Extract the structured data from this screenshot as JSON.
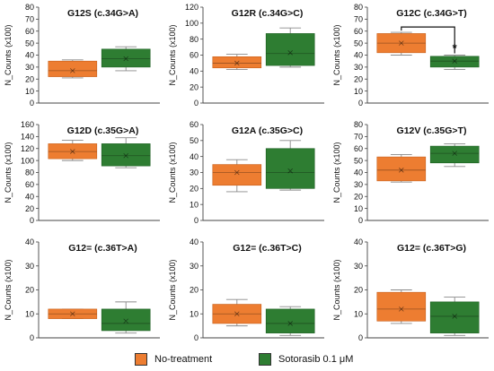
{
  "colors": {
    "orange": "#ED7D31",
    "green": "#2E7D32",
    "whisker": "#8a8a8a"
  },
  "legend": [
    {
      "label": "No-treatment",
      "color": "#ED7D31"
    },
    {
      "label": "Sotorasib 0.1 μM",
      "color": "#2E7D32"
    }
  ],
  "chart_data": [
    {
      "type": "box",
      "title": "G12S (c.34G>A)",
      "ylabel": "N_Counts (x100)",
      "ylim": [
        0,
        80
      ],
      "yticks": [
        0,
        10,
        20,
        30,
        40,
        50,
        60,
        70,
        80
      ],
      "series": [
        {
          "name": "No-treatment",
          "min": 21,
          "q1": 22,
          "median": 27,
          "mean": 27,
          "q3": 35,
          "max": 36
        },
        {
          "name": "Sotorasib 0.1 μM",
          "min": 27,
          "q1": 30,
          "median": 37,
          "mean": 37,
          "q3": 45,
          "max": 47
        }
      ]
    },
    {
      "type": "box",
      "title": "G12R (c.34G>C)",
      "ylabel": "N_Counts (x100)",
      "ylim": [
        0,
        120
      ],
      "yticks": [
        0,
        20,
        40,
        60,
        80,
        100,
        120
      ],
      "series": [
        {
          "name": "No-treatment",
          "min": 42,
          "q1": 44,
          "median": 50,
          "mean": 50,
          "q3": 58,
          "max": 61
        },
        {
          "name": "Sotorasib 0.1 μM",
          "min": 45,
          "q1": 47,
          "median": 62,
          "mean": 63,
          "q3": 87,
          "max": 94
        }
      ]
    },
    {
      "type": "box",
      "title": "G12C (c.34G>T)",
      "ylabel": "N_Counts (x100)",
      "ylim": [
        0,
        80
      ],
      "yticks": [
        0,
        10,
        20,
        30,
        40,
        50,
        60,
        70,
        80
      ],
      "significance": "*",
      "series": [
        {
          "name": "No-treatment",
          "min": 40,
          "q1": 42,
          "median": 50,
          "mean": 50,
          "q3": 58,
          "max": 59
        },
        {
          "name": "Sotorasib 0.1 μM",
          "min": 28,
          "q1": 30,
          "median": 35,
          "mean": 35,
          "q3": 39,
          "max": 40
        }
      ]
    },
    {
      "type": "box",
      "title": "G12D (c.35G>A)",
      "ylabel": "N_Counts (x100)",
      "ylim": [
        0,
        160
      ],
      "yticks": [
        0,
        20,
        40,
        60,
        80,
        100,
        120,
        140,
        160
      ],
      "series": [
        {
          "name": "No-treatment",
          "min": 100,
          "q1": 103,
          "median": 115,
          "mean": 115,
          "q3": 128,
          "max": 134
        },
        {
          "name": "Sotorasib 0.1 μM",
          "min": 88,
          "q1": 91,
          "median": 108,
          "mean": 108,
          "q3": 128,
          "max": 138
        }
      ]
    },
    {
      "type": "box",
      "title": "G12A (c.35G>C)",
      "ylabel": "N_Counts (x100)",
      "ylim": [
        0,
        60
      ],
      "yticks": [
        0,
        10,
        20,
        30,
        40,
        50,
        60
      ],
      "series": [
        {
          "name": "No-treatment",
          "min": 18,
          "q1": 22,
          "median": 30,
          "mean": 30,
          "q3": 35,
          "max": 38
        },
        {
          "name": "Sotorasib 0.1 μM",
          "min": 19,
          "q1": 20,
          "median": 30,
          "mean": 31,
          "q3": 45,
          "max": 50
        }
      ]
    },
    {
      "type": "box",
      "title": "G12V (c.35G>T)",
      "ylabel": "N_Counts (x100)",
      "ylim": [
        0,
        80
      ],
      "yticks": [
        0,
        10,
        20,
        30,
        40,
        50,
        60,
        70,
        80
      ],
      "series": [
        {
          "name": "No-treatment",
          "min": 32,
          "q1": 33,
          "median": 42,
          "mean": 42,
          "q3": 53,
          "max": 55
        },
        {
          "name": "Sotorasib 0.1 μM",
          "min": 45,
          "q1": 48,
          "median": 56,
          "mean": 56,
          "q3": 62,
          "max": 64
        }
      ]
    },
    {
      "type": "box",
      "title": "G12= (c.36T>A)",
      "ylabel": "N_Counts (x100)",
      "ylim": [
        0,
        40
      ],
      "yticks": [
        0,
        10,
        20,
        30,
        40
      ],
      "series": [
        {
          "name": "No-treatment",
          "min": 8,
          "q1": 8,
          "median": 10,
          "mean": 10,
          "q3": 12,
          "max": 12
        },
        {
          "name": "Sotorasib 0.1 μM",
          "min": 2,
          "q1": 3,
          "median": 6,
          "mean": 7,
          "q3": 12,
          "max": 15
        }
      ]
    },
    {
      "type": "box",
      "title": "G12= (c.36T>C)",
      "ylabel": "N_Counts (x100)",
      "ylim": [
        0,
        40
      ],
      "yticks": [
        0,
        10,
        20,
        30,
        40
      ],
      "series": [
        {
          "name": "No-treatment",
          "min": 5,
          "q1": 6,
          "median": 10,
          "mean": 10,
          "q3": 14,
          "max": 16
        },
        {
          "name": "Sotorasib 0.1 μM",
          "min": 1,
          "q1": 2,
          "median": 6,
          "mean": 6,
          "q3": 12,
          "max": 13
        }
      ]
    },
    {
      "type": "box",
      "title": "G12= (c.36T>G)",
      "ylabel": "N_Counts (x100)",
      "ylim": [
        0,
        40
      ],
      "yticks": [
        0,
        10,
        20,
        30,
        40
      ],
      "series": [
        {
          "name": "No-treatment",
          "min": 6,
          "q1": 7,
          "median": 12,
          "mean": 12,
          "q3": 19,
          "max": 20
        },
        {
          "name": "Sotorasib 0.1 μM",
          "min": 1,
          "q1": 2,
          "median": 9,
          "mean": 9,
          "q3": 15,
          "max": 17
        }
      ]
    }
  ]
}
